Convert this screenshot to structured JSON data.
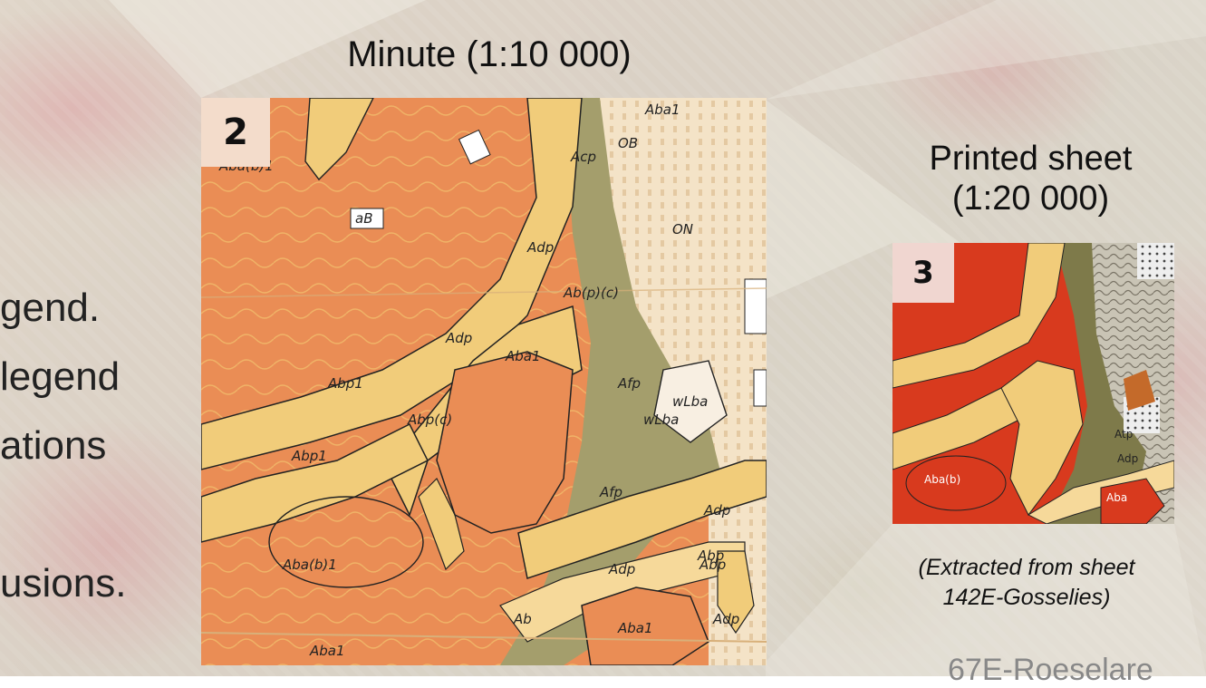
{
  "background": {
    "left_text_lines": [
      "gend.",
      "legend",
      "ations",
      "usions."
    ],
    "footer_text": "67E-Roeselare"
  },
  "minute_panel": {
    "title": "Minute (1:10 000)",
    "badge": "2",
    "labels": [
      "Aba(b)1",
      "Adp",
      "Adp",
      "Aba1",
      "Abp1",
      "Abp1",
      "Ab(p)(c)",
      "Abp(c)",
      "Aba1",
      "Acp",
      "Afp",
      "Afp",
      "wLba",
      "wLba",
      "Adp",
      "Aba(b)1",
      "Aba1",
      "Adp",
      "Abp",
      "Aba1",
      "Adp",
      "Ab",
      "OB",
      "aB",
      "ON",
      "Abp"
    ]
  },
  "printed_panel": {
    "title_line1": "Printed sheet",
    "title_line2": "(1:20 000)",
    "badge": "3",
    "labels": [
      "Atp",
      "Adp",
      "Aba(b)",
      "Aba"
    ],
    "caption_line1": "(Extracted from sheet",
    "caption_line2": "142E-Gosselies)"
  },
  "colors": {
    "orange": "#ea8d55",
    "yellow": "#f1cc7a",
    "olive": "#a49e6c",
    "cream": "#f1dcbf",
    "red": "#d83a1e"
  }
}
